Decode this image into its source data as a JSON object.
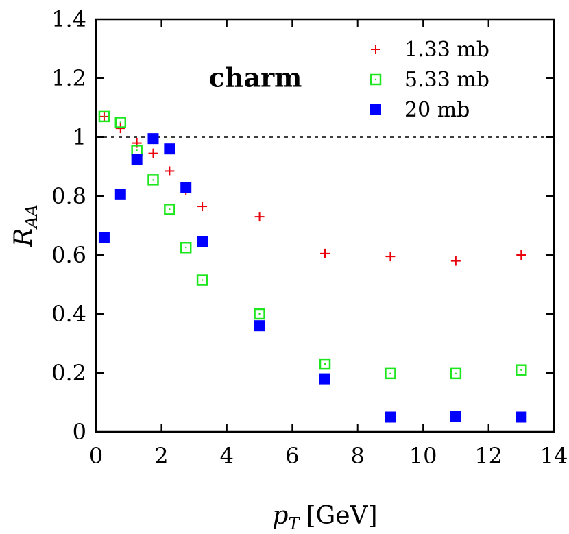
{
  "chart_data": {
    "type": "scatter",
    "title": "",
    "xlabel": "p",
    "xlabel_sub": "T",
    "xlabel_unit": "[GeV]",
    "ylabel": "R",
    "ylabel_sub": "AA",
    "xlim": [
      0,
      14
    ],
    "ylim": [
      0,
      1.4
    ],
    "xticks": [
      "0",
      "2",
      "4",
      "6",
      "8",
      "10",
      "12",
      "14"
    ],
    "yticks": [
      "0",
      "0.2",
      "0.4",
      "0.6",
      "0.8",
      "1",
      "1.2",
      "1.4"
    ],
    "reference_line": 1.0,
    "annotation": {
      "text": "charm",
      "x": 5.0,
      "y": 1.18
    },
    "legend_position": "top-right",
    "series": [
      {
        "name": "1.33 mb",
        "marker": "plus",
        "color": "#e8000b",
        "x": [
          0.25,
          0.75,
          1.25,
          1.75,
          2.25,
          2.75,
          3.25,
          5,
          7,
          9,
          11,
          13
        ],
        "y": [
          1.07,
          1.03,
          0.98,
          0.945,
          0.885,
          0.82,
          0.765,
          0.73,
          0.605,
          0.595,
          0.58,
          0.6
        ]
      },
      {
        "name": "5.33 mb",
        "marker": "square-open",
        "color": "#1ee61e",
        "x": [
          0.25,
          0.75,
          1.25,
          1.75,
          2.25,
          2.75,
          3.25,
          5,
          7,
          9,
          11,
          13
        ],
        "y": [
          1.07,
          1.05,
          0.955,
          0.855,
          0.755,
          0.625,
          0.515,
          0.4,
          0.23,
          0.198,
          0.198,
          0.21
        ]
      },
      {
        "name": "20 mb",
        "marker": "square-filled",
        "color": "#0000ff",
        "x": [
          0.25,
          0.75,
          1.25,
          1.75,
          2.25,
          2.75,
          3.25,
          5,
          7,
          9,
          11,
          13
        ],
        "y": [
          0.66,
          0.805,
          0.925,
          0.995,
          0.96,
          0.83,
          0.645,
          0.36,
          0.18,
          0.05,
          0.052,
          0.05
        ]
      }
    ]
  }
}
